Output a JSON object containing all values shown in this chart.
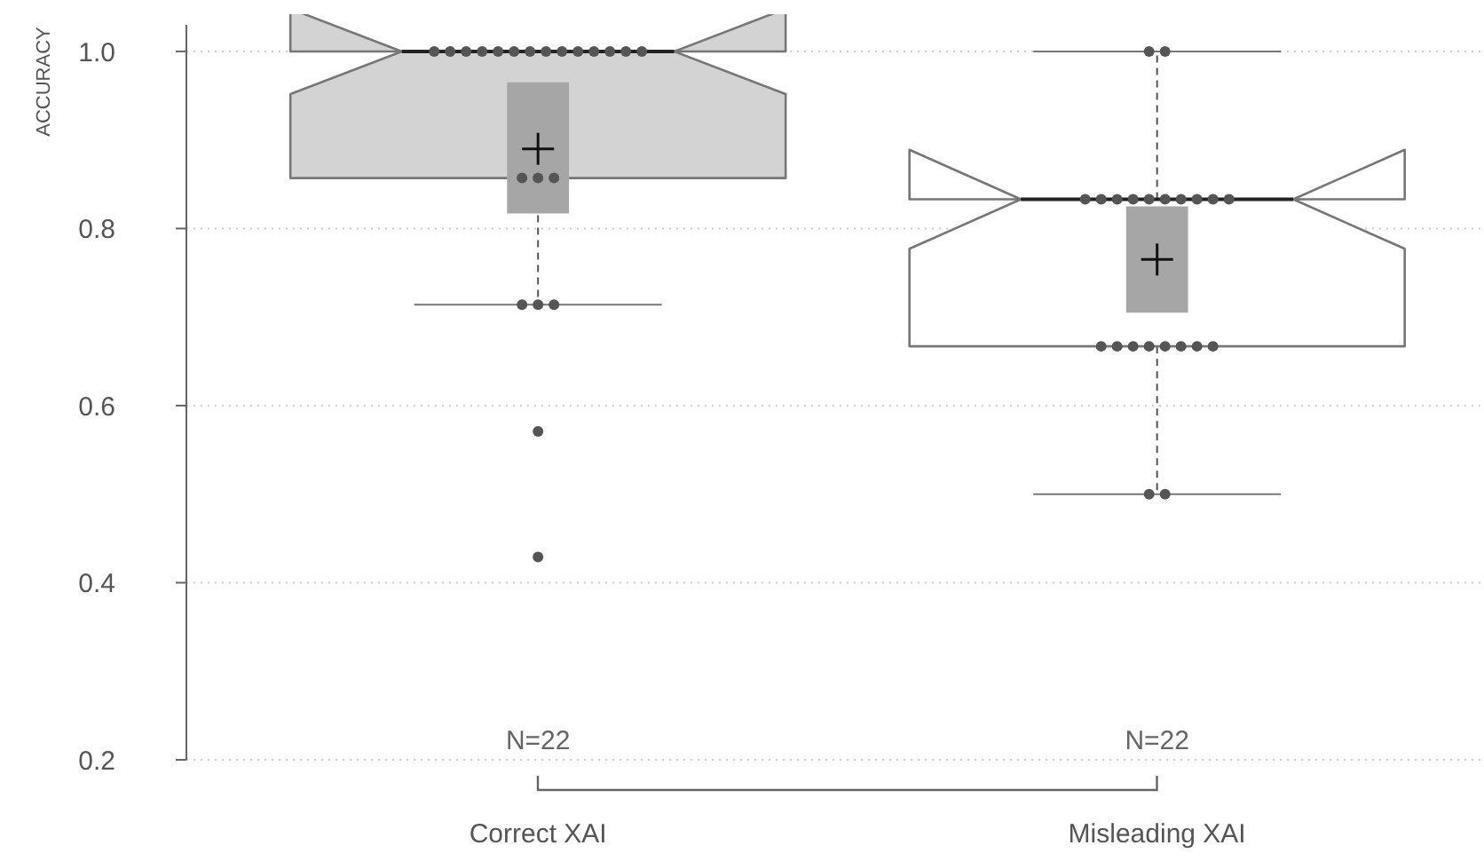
{
  "chart_data": {
    "type": "box",
    "ylabel": "ACCURACY",
    "categories": [
      "Correct XAI",
      "Misleading XAI"
    ],
    "boxes": [
      {
        "low": 0.714,
        "q1": 0.857,
        "median": 1.0,
        "q3": 1.0,
        "high": 1.0,
        "mean": 0.89
      },
      {
        "low": 0.5,
        "q1": 0.667,
        "median": 0.833,
        "q3": 0.833,
        "high": 1.0,
        "mean": 0.765
      }
    ],
    "colors": [
      "#d3d3d3",
      "#ffffff"
    ],
    "series": [
      {
        "type": "bar",
        "color": "#a6a6a6",
        "base": [
          0.817,
          0.705
        ],
        "values": [
          0.148,
          0.12
        ]
      },
      {
        "type": "scatter",
        "color": "#555555",
        "x": [
          "Correct XAI",
          "Correct XAI",
          "Correct XAI",
          "Correct XAI",
          "Correct XAI",
          "Correct XAI",
          "Correct XAI",
          "Correct XAI",
          "Correct XAI",
          "Correct XAI",
          "Correct XAI",
          "Correct XAI",
          "Correct XAI",
          "Correct XAI",
          "Correct XAI",
          "Correct XAI",
          "Correct XAI",
          "Correct XAI",
          "Correct XAI",
          "Correct XAI",
          "Correct XAI",
          "Correct XAI",
          "Misleading XAI",
          "Misleading XAI",
          "Misleading XAI",
          "Misleading XAI",
          "Misleading XAI",
          "Misleading XAI",
          "Misleading XAI",
          "Misleading XAI",
          "Misleading XAI",
          "Misleading XAI",
          "Misleading XAI",
          "Misleading XAI",
          "Misleading XAI",
          "Misleading XAI",
          "Misleading XAI",
          "Misleading XAI",
          "Misleading XAI",
          "Misleading XAI",
          "Misleading XAI",
          "Misleading XAI",
          "Misleading XAI",
          "Misleading XAI"
        ],
        "values": [
          1.0,
          1.0,
          1.0,
          1.0,
          1.0,
          1.0,
          1.0,
          1.0,
          1.0,
          1.0,
          1.0,
          1.0,
          1.0,
          1.0,
          0.857,
          0.857,
          0.857,
          0.714,
          0.714,
          0.714,
          0.571,
          0.429,
          1.0,
          1.0,
          0.833,
          0.833,
          0.833,
          0.833,
          0.833,
          0.833,
          0.833,
          0.833,
          0.833,
          0.833,
          0.667,
          0.667,
          0.667,
          0.667,
          0.667,
          0.667,
          0.667,
          0.667,
          0.5,
          0.5
        ]
      }
    ],
    "ylim": [
      0.2,
      1.03
    ],
    "yticks": [
      0.2,
      0.4,
      0.6,
      0.8,
      {
        "value": 1.0,
        "label": "1.0"
      }
    ],
    "grid": "y",
    "annotations": [
      "N=22",
      "N=22"
    ]
  }
}
